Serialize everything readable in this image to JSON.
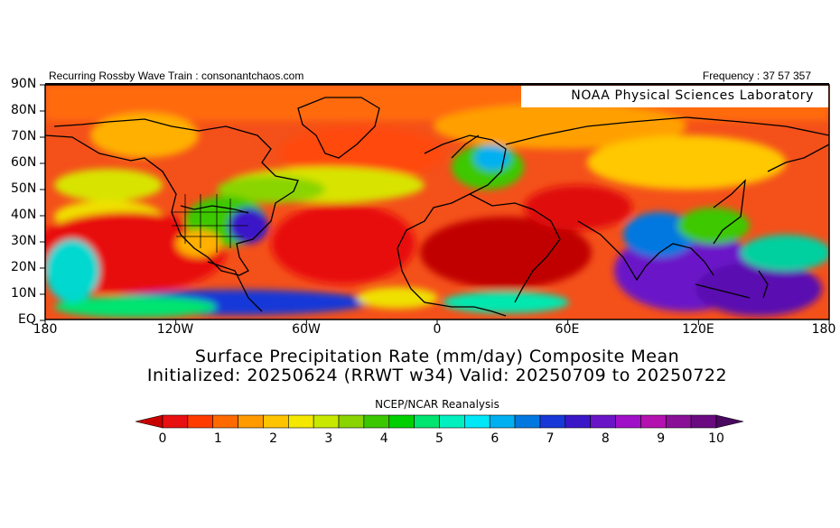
{
  "header": {
    "left": "Recurring Rossby Wave Train : consonantchaos.com",
    "right": "Frequency : 37 57 357"
  },
  "map": {
    "lab_label": "NOAA Physical Sciences Laboratory",
    "y_ticks": [
      "90N",
      "80N",
      "70N",
      "60N",
      "50N",
      "40N",
      "30N",
      "20N",
      "10N",
      "EQ"
    ],
    "x_ticks": [
      "180",
      "120W",
      "60W",
      "0",
      "60E",
      "120E",
      "180"
    ]
  },
  "titles": {
    "line1": "Surface Precipitation Rate (mm/day) Composite Mean",
    "line2": "Initialized: 20250624 (RRWT w34) Valid: 20250709 to 20250722",
    "source": "NCEP/NCAR Reanalysis"
  },
  "colorbar": {
    "labels": [
      "0",
      "1",
      "2",
      "3",
      "4",
      "5",
      "6",
      "7",
      "8",
      "9",
      "10"
    ],
    "colors": [
      "#c80000",
      "#e81010",
      "#ff3b00",
      "#ff6a00",
      "#ff9a00",
      "#ffc400",
      "#f4e800",
      "#c8e800",
      "#8ad400",
      "#3cc800",
      "#00d000",
      "#00e470",
      "#00f0c0",
      "#00e8f8",
      "#00b0f0",
      "#0078e0",
      "#1838d8",
      "#3a18c8",
      "#6a14c8",
      "#a010c8",
      "#b412b0",
      "#8a1098",
      "#6a0a80",
      "#4a0860"
    ]
  }
}
